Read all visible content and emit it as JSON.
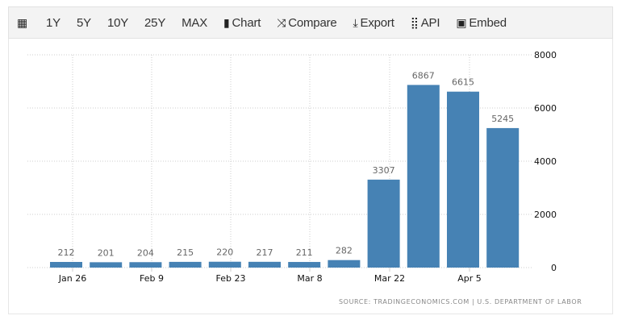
{
  "toolbar": {
    "items": [
      {
        "label": "",
        "icon": "calendar-icon"
      },
      {
        "label": "1Y"
      },
      {
        "label": "5Y"
      },
      {
        "label": "10Y"
      },
      {
        "label": "25Y"
      },
      {
        "label": "MAX"
      },
      {
        "label": "Chart",
        "icon": "bar-chart-icon"
      },
      {
        "label": "Compare",
        "icon": "shuffle-icon"
      },
      {
        "label": "Export",
        "icon": "download-icon"
      },
      {
        "label": "API",
        "icon": "grid-icon"
      },
      {
        "label": "Embed",
        "icon": "image-icon"
      }
    ]
  },
  "chart_data": {
    "type": "bar",
    "values": [
      212,
      201,
      204,
      215,
      220,
      217,
      211,
      282,
      3307,
      6867,
      6615,
      5245
    ],
    "x_tick_labels": [
      "Jan 26",
      "Feb 9",
      "Feb 23",
      "Mar 8",
      "Mar 22",
      "Apr 5"
    ],
    "y_ticks": [
      0,
      2000,
      4000,
      6000,
      8000
    ],
    "ylim": [
      0,
      8000
    ],
    "y_axis_side": "right",
    "grid": true,
    "bar_color": "#4682b4",
    "data_labels": true
  },
  "source": "SOURCE: TRADINGECONOMICS.COM | U.S. DEPARTMENT OF LABOR"
}
